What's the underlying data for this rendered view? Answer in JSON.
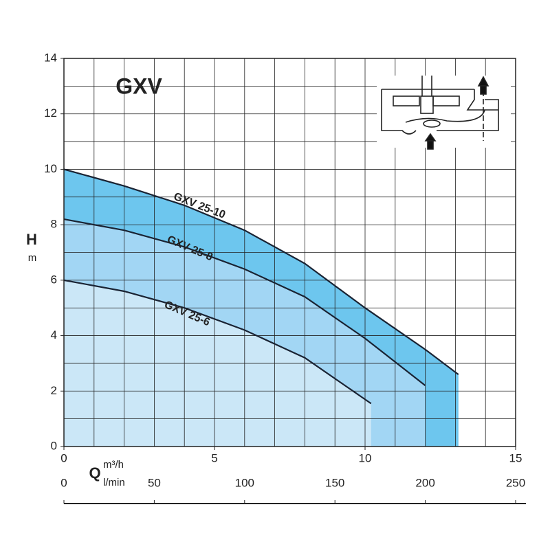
{
  "chart_data": {
    "type": "area",
    "title": "GXV",
    "ylabel": "H",
    "yunit": "m",
    "xlabel": "Q",
    "xunit": "m³/h",
    "x2unit": "l/min",
    "xlim": [
      0,
      15
    ],
    "xticks": [
      0,
      5,
      10,
      15
    ],
    "x2lim": [
      0,
      250
    ],
    "x2ticks": [
      0,
      50,
      100,
      150,
      200,
      250
    ],
    "ylim": [
      0,
      14
    ],
    "yticks": [
      0,
      2,
      4,
      6,
      8,
      10,
      12,
      14
    ],
    "grid": true,
    "series": [
      {
        "name": "GXV 25-10",
        "color": "#6dc6ee",
        "x": [
          0,
          2,
          4,
          6,
          8,
          10,
          12,
          13.1
        ],
        "values": [
          10,
          9.4,
          8.7,
          7.8,
          6.6,
          5.0,
          3.5,
          2.6
        ]
      },
      {
        "name": "GXV 25-8",
        "color": "#a2d6f4",
        "x": [
          0,
          2,
          4,
          6,
          8,
          10,
          12
        ],
        "values": [
          8.2,
          7.8,
          7.2,
          6.4,
          5.4,
          3.9,
          2.2
        ]
      },
      {
        "name": "GXV 25-6",
        "color": "#cbe7f7",
        "x": [
          0,
          2,
          4,
          6,
          8,
          10,
          10.2
        ],
        "values": [
          6.0,
          5.6,
          5.0,
          4.2,
          3.2,
          1.7,
          1.55
        ]
      }
    ]
  }
}
